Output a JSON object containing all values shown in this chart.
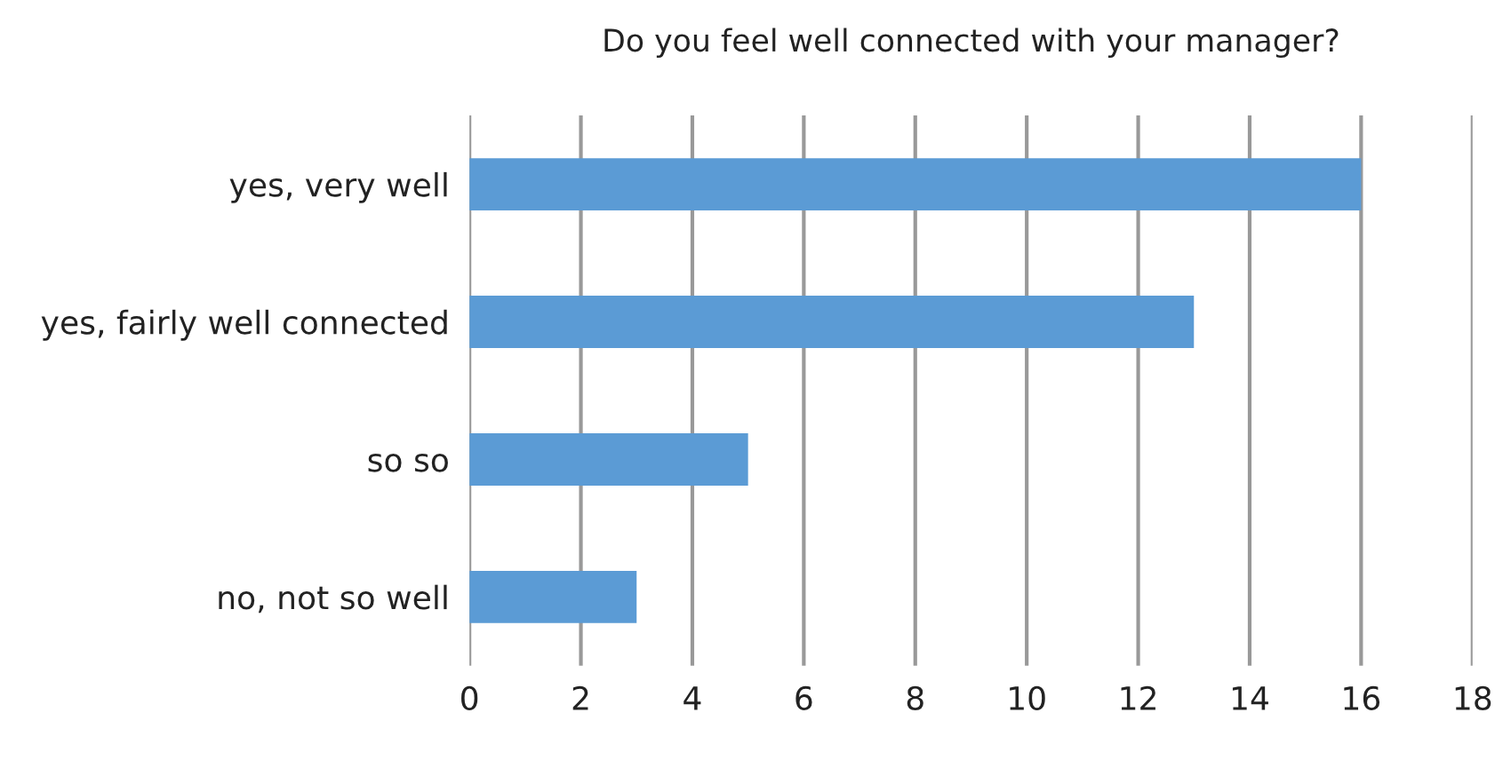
{
  "chart_data": {
    "type": "bar",
    "orientation": "horizontal",
    "title": "Do you feel well connected with your manager?",
    "categories": [
      "yes, very well",
      "yes, fairly well connected",
      "so so",
      "no, not so well"
    ],
    "values": [
      16,
      13,
      5,
      3
    ],
    "color": "#5b9bd5",
    "xlim": [
      0,
      18
    ],
    "xticks": [
      0,
      2,
      4,
      6,
      8,
      10,
      12,
      14,
      16,
      18
    ],
    "grid": "x",
    "legend": false
  }
}
